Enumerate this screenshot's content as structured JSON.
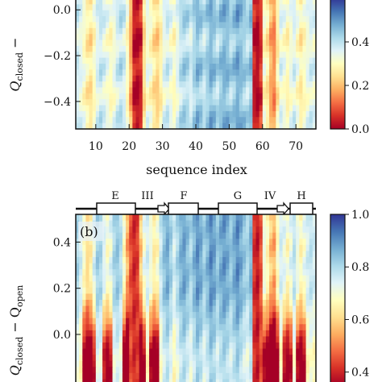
{
  "chart_data": [
    {
      "type": "heatmap",
      "panel_label": "",
      "xlabel": "sequence index",
      "ylabel_main": "Q",
      "ylabel_sub": "closed",
      "ylabel_rest": " − ",
      "x_ticks": [
        "10",
        "20",
        "30",
        "40",
        "50",
        "60",
        "70"
      ],
      "x_tick_values": [
        10,
        20,
        30,
        40,
        50,
        60,
        70
      ],
      "xlim": [
        4,
        76
      ],
      "y_ticks": [
        "0.0",
        "−0.2",
        "−0.4"
      ],
      "y_tick_values": [
        0.0,
        -0.2,
        -0.4
      ],
      "ylim": [
        -0.52,
        0.05
      ],
      "colorbar": {
        "ticks": [
          "0.4",
          "0.2",
          "0.0"
        ],
        "tick_values": [
          0.4,
          0.2,
          0.0
        ],
        "range": [
          0.0,
          0.6
        ],
        "colormap": "RdYlBu"
      },
      "profile": [
        0.62,
        0.58,
        0.52,
        0.45,
        0.42,
        0.5,
        0.6,
        0.64,
        0.6,
        0.55,
        0.5,
        0.55,
        0.62,
        0.66,
        0.62,
        0.5,
        0.3,
        0.05,
        0.02,
        0.08,
        0.4,
        0.55,
        0.5,
        0.42,
        0.38,
        0.46,
        0.58,
        0.62,
        0.56,
        0.5,
        0.58,
        0.66,
        0.7,
        0.68,
        0.62,
        0.7,
        0.76,
        0.72,
        0.66,
        0.72,
        0.78,
        0.74,
        0.68,
        0.74,
        0.78,
        0.76,
        0.7,
        0.74,
        0.8,
        0.76,
        0.72,
        0.68,
        0.74,
        0.06,
        0.02,
        0.1,
        0.5,
        0.44,
        0.3,
        0.25,
        0.45,
        0.58,
        0.54,
        0.48,
        0.55,
        0.6,
        0.52,
        0.45,
        0.5,
        0.56,
        0.6,
        0.58
      ]
    },
    {
      "type": "heatmap",
      "panel_label": "(b)",
      "secondary_structure": [
        {
          "label": "E",
          "kind": "strand"
        },
        {
          "label": "III",
          "kind": "turn"
        },
        {
          "label": "F",
          "kind": "strand"
        },
        {
          "label": "G",
          "kind": "strand"
        },
        {
          "label": "IV",
          "kind": "turn"
        },
        {
          "label": "H",
          "kind": "strand"
        }
      ],
      "ylabel_main": "Q",
      "ylabel_sub": "closed",
      "ylabel_rest": " − Q",
      "ylabel_sub2": "open",
      "y_ticks": [
        "0.4",
        "0.2",
        "0.0"
      ],
      "y_tick_values": [
        0.4,
        0.2,
        0.0
      ],
      "ylim": [
        -0.22,
        0.52
      ],
      "colorbar": {
        "ticks": [
          "1.0",
          "0.8",
          "0.6",
          "0.4"
        ],
        "tick_values": [
          1.0,
          0.8,
          0.6,
          0.4
        ],
        "range": [
          0.35,
          1.0
        ],
        "colormap": "RdYlBu"
      },
      "profile": [
        0.7,
        0.62,
        0.5,
        0.4,
        0.45,
        0.6,
        0.72,
        0.7,
        0.6,
        0.52,
        0.58,
        0.7,
        0.74,
        0.68,
        0.5,
        0.3,
        0.15,
        0.08,
        0.12,
        0.35,
        0.55,
        0.62,
        0.55,
        0.45,
        0.5,
        0.65,
        0.75,
        0.8,
        0.72,
        0.62,
        0.7,
        0.78,
        0.82,
        0.76,
        0.7,
        0.78,
        0.85,
        0.8,
        0.72,
        0.78,
        0.86,
        0.82,
        0.74,
        0.8,
        0.84,
        0.8,
        0.74,
        0.8,
        0.86,
        0.8,
        0.74,
        0.7,
        0.78,
        0.1,
        0.05,
        0.15,
        0.55,
        0.48,
        0.35,
        0.3,
        0.5,
        0.62,
        0.58,
        0.5,
        0.58,
        0.66,
        0.56,
        0.48,
        0.55,
        0.62,
        0.66,
        0.62
      ]
    }
  ]
}
